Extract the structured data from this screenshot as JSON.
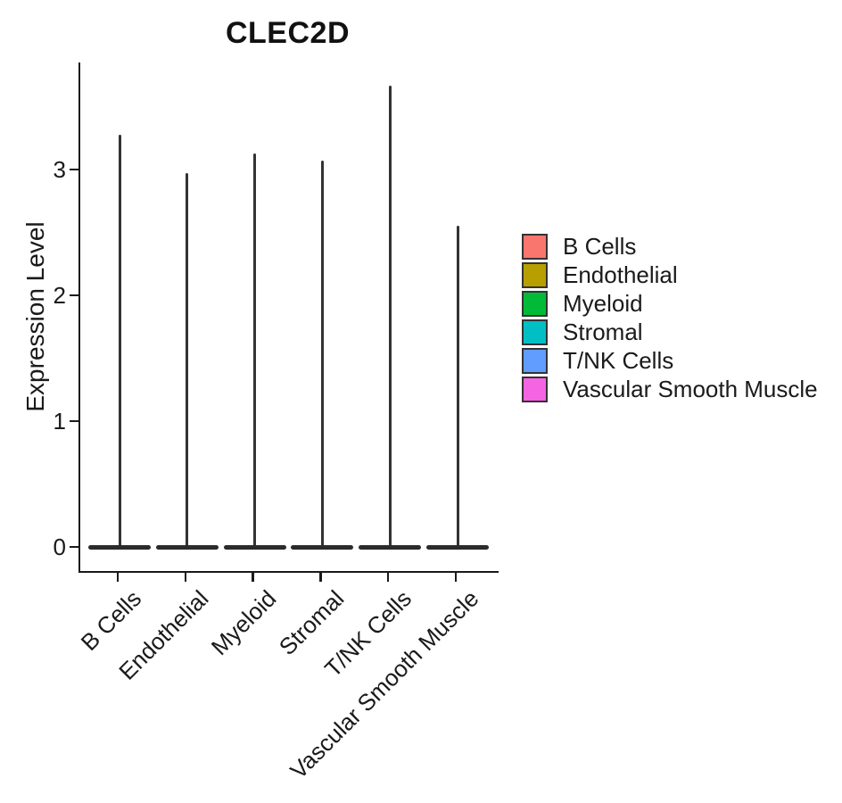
{
  "title": "CLEC2D",
  "y_axis": {
    "label": "Expression Level",
    "ticks": [
      0,
      1,
      2,
      3
    ]
  },
  "chart_data": {
    "type": "violin",
    "title": "CLEC2D",
    "xlabel": "",
    "ylabel": "Expression Level",
    "categories": [
      "B Cells",
      "Endothelial",
      "Myeloid",
      "Stromal",
      "T/NK Cells",
      "Vascular Smooth Muscle"
    ],
    "y_ticks": [
      0,
      1,
      2,
      3
    ],
    "ylim": [
      0,
      3.85
    ],
    "grid": false,
    "legend_position": "right",
    "outline_color": "#333333",
    "violins": [
      {
        "category": "B Cells",
        "color": "#F8766D",
        "max_value": 3.28,
        "density_peak_at": 0
      },
      {
        "category": "Endothelial",
        "color": "#B79F00",
        "max_value": 2.97,
        "density_peak_at": 0
      },
      {
        "category": "Myeloid",
        "color": "#00BA38",
        "max_value": 3.13,
        "density_peak_at": 0
      },
      {
        "category": "Stromal",
        "color": "#00BFC4",
        "max_value": 3.07,
        "density_peak_at": 0
      },
      {
        "category": "T/NK Cells",
        "color": "#619CFF",
        "max_value": 3.67,
        "density_peak_at": 0
      },
      {
        "category": "Vascular Smooth Muscle",
        "color": "#F564E2",
        "max_value": 2.55,
        "density_peak_at": 0
      }
    ],
    "note": "All violins are concentrated at expression 0 (flat base bar) with a thin tail reaching max_value."
  },
  "legend": {
    "entries": [
      {
        "label": "B Cells",
        "color": "#F8766D"
      },
      {
        "label": "Endothelial",
        "color": "#B79F00"
      },
      {
        "label": "Myeloid",
        "color": "#00BA38"
      },
      {
        "label": "Stromal",
        "color": "#00BFC4"
      },
      {
        "label": "T/NK Cells",
        "color": "#619CFF"
      },
      {
        "label": "Vascular Smooth Muscle",
        "color": "#F564E2"
      }
    ]
  }
}
